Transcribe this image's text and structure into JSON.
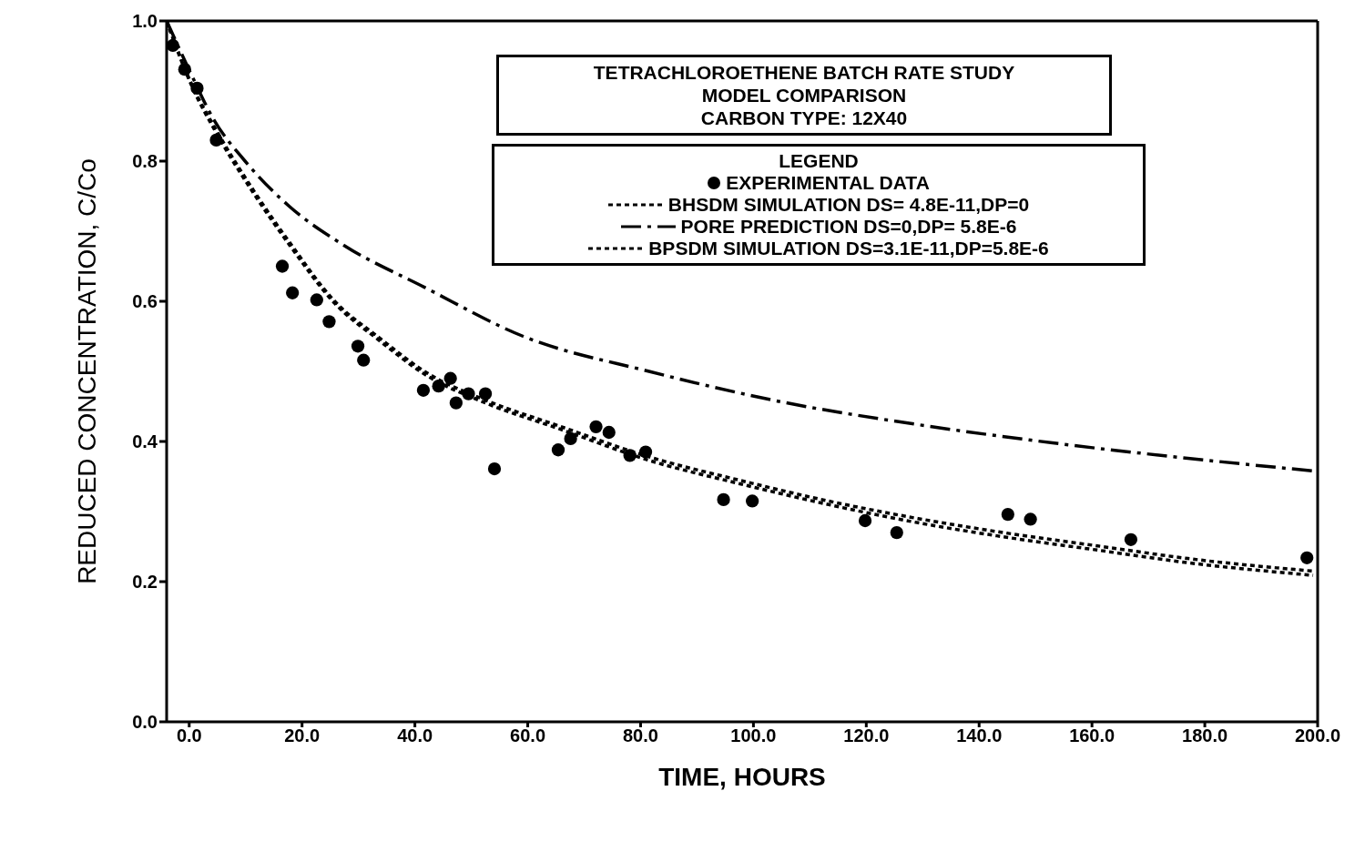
{
  "chart_data": {
    "type": "scatter",
    "title": "TETRACHLOROETHENE  BATCH RATE STUDY",
    "subtitle": "MODEL COMPARISON\nCARBON TYPE: 12X40",
    "xlabel": "TIME, HOURS",
    "ylabel": "REDUCED CONCENTRATION, C/Co",
    "legend_title": "LEGEND",
    "legend": "top right",
    "grid": false,
    "xlim": [
      -4,
      200
    ],
    "ylim": [
      0,
      1
    ],
    "xticks": [
      {
        "value": 0,
        "label": "0.0"
      },
      {
        "value": 20,
        "label": "20.0"
      },
      {
        "value": 40,
        "label": "40.0"
      },
      {
        "value": 60,
        "label": "60.0"
      },
      {
        "value": 80,
        "label": "80.0"
      },
      {
        "value": 100,
        "label": "100.0"
      },
      {
        "value": 120,
        "label": "120.0"
      },
      {
        "value": 140,
        "label": "140.0"
      },
      {
        "value": 160,
        "label": "160.0"
      },
      {
        "value": 180,
        "label": "180.0"
      },
      {
        "value": 200,
        "label": "200.0"
      }
    ],
    "yticks": [
      {
        "value": 0,
        "label": "0.0"
      },
      {
        "value": 0.2,
        "label": "0.2"
      },
      {
        "value": 0.4,
        "label": "0.4"
      },
      {
        "value": 0.6,
        "label": "0.6"
      },
      {
        "value": 0.8,
        "label": "0.8"
      },
      {
        "value": 1,
        "label": "1.0"
      }
    ],
    "series": [
      {
        "name": "EXPERIMENTAL DATA",
        "marker": "circle",
        "color": "#000000",
        "x": [
          -2.9,
          -0.8,
          1.4,
          4.8,
          16.5,
          18.3,
          22.6,
          24.8,
          29.9,
          30.9,
          41.5,
          44.2,
          46.3,
          47.3,
          49.5,
          52.5,
          54.1,
          65.4,
          67.6,
          72.1,
          74.4,
          78.1,
          80.9,
          94.7,
          99.8,
          119.8,
          125.4,
          145.1,
          149.1,
          166.9,
          198.1
        ],
        "values": [
          0.965,
          0.931,
          0.904,
          0.83,
          0.65,
          0.612,
          0.602,
          0.571,
          0.536,
          0.516,
          0.473,
          0.479,
          0.49,
          0.455,
          0.468,
          0.468,
          0.361,
          0.388,
          0.404,
          0.421,
          0.413,
          0.38,
          0.385,
          0.317,
          0.315,
          0.287,
          0.27,
          0.296,
          0.289,
          0.26,
          0.234
        ]
      },
      {
        "name": "BHSDM SIMULATION DS= 4.8E-11,DP=0",
        "type": "line",
        "line_style": "dotted",
        "marker": "none",
        "color": "#000000",
        "x": [
          -4,
          0.3,
          5.1,
          11.5,
          17.8,
          25.8,
          33.7,
          41.7,
          52.8,
          65.6,
          81.5,
          97.4,
          113.3,
          129.2,
          145.1,
          161,
          177,
          199.2
        ],
        "values": [
          1,
          0.91,
          0.836,
          0.753,
          0.68,
          0.597,
          0.544,
          0.496,
          0.454,
          0.418,
          0.373,
          0.34,
          0.31,
          0.284,
          0.263,
          0.245,
          0.227,
          0.209
        ]
      },
      {
        "name": "PORE PREDICTION  DS=0,DP= 5.8E-6",
        "type": "line",
        "line_style": "dashed",
        "marker": "none",
        "color": "#000000",
        "x": [
          -4,
          0,
          4.3,
          9.9,
          17.8,
          27.4,
          41.7,
          59.2,
          81.5,
          105.3,
          129.2,
          153,
          177,
          199.2
        ],
        "values": [
          1,
          0.93,
          0.86,
          0.8,
          0.735,
          0.68,
          0.62,
          0.55,
          0.5,
          0.456,
          0.424,
          0.398,
          0.376,
          0.358
        ]
      },
      {
        "name": "BPSDM SIMULATION DS=3.1E-11,DP=5.8E-6",
        "type": "line",
        "line_style": "dotted",
        "marker": "none",
        "color": "#000000",
        "x": [
          -4,
          0.3,
          5.1,
          11.5,
          17.8,
          25.8,
          33.7,
          41.7,
          52.8,
          65.6,
          81.5,
          97.4,
          113.3,
          129.2,
          145.1,
          161,
          177,
          199.2
        ],
        "values": [
          1,
          0.912,
          0.84,
          0.757,
          0.684,
          0.6,
          0.548,
          0.5,
          0.458,
          0.422,
          0.378,
          0.345,
          0.315,
          0.29,
          0.269,
          0.251,
          0.233,
          0.215
        ]
      }
    ]
  }
}
